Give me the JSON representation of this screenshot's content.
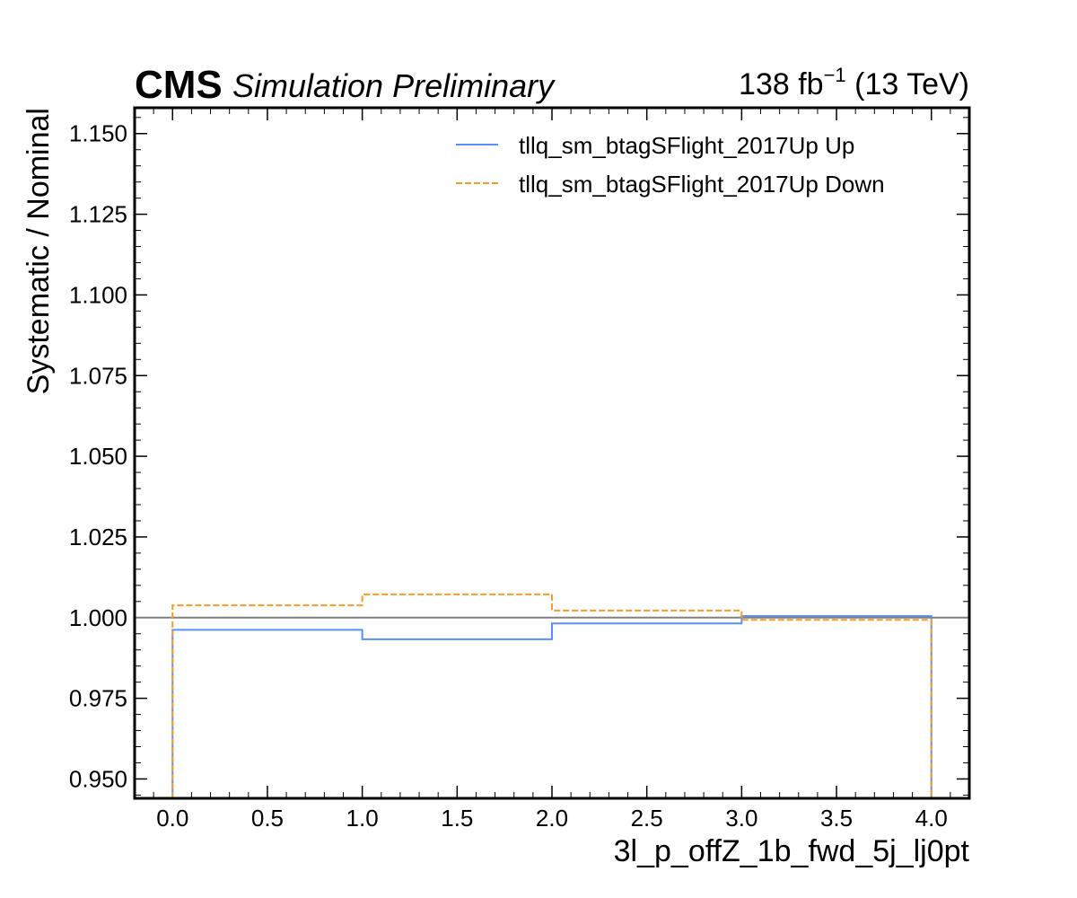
{
  "header": {
    "experiment": "CMS",
    "status": "Simulation Preliminary",
    "lumi_value": "138 fb",
    "lumi_exp": "−1",
    "lumi_energy": " (13 TeV)"
  },
  "chart_data": {
    "type": "line",
    "xlabel": "3l_p_offZ_1b_fwd_5j_lj0pt",
    "ylabel": "Systematic / Nominal",
    "xlim": [
      -0.2,
      4.2
    ],
    "ylim": [
      0.944,
      1.158
    ],
    "x_ticks": [
      "0.0",
      "0.5",
      "1.0",
      "1.5",
      "2.0",
      "2.5",
      "3.0",
      "3.5",
      "4.0"
    ],
    "x_tick_values": [
      0.0,
      0.5,
      1.0,
      1.5,
      2.0,
      2.5,
      3.0,
      3.5,
      4.0
    ],
    "y_ticks": [
      "0.950",
      "0.975",
      "1.000",
      "1.025",
      "1.050",
      "1.075",
      "1.100",
      "1.125",
      "1.150"
    ],
    "y_tick_values": [
      0.95,
      0.975,
      1.0,
      1.025,
      1.05,
      1.075,
      1.1,
      1.125,
      1.15
    ],
    "bin_edges": [
      0,
      1,
      2,
      3,
      4
    ],
    "reference_line": 1.0,
    "grid": false,
    "legend_position": "top-right",
    "series": [
      {
        "name": "tllq_sm_btagSFlight_2017Up Up",
        "style": "solid",
        "color": "#5790fc",
        "values": [
          0.9962,
          0.9933,
          0.9982,
          1.0005
        ]
      },
      {
        "name": "tllq_sm_btagSFlight_2017Up Down",
        "style": "dashed",
        "color": "#f89c20",
        "values": [
          1.0038,
          1.0072,
          1.0022,
          0.9993
        ]
      }
    ]
  }
}
